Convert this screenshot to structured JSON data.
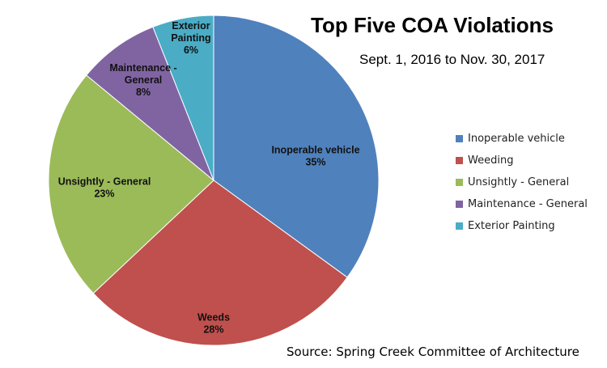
{
  "chart_data": {
    "type": "pie",
    "title": "Top Five COA Violations",
    "subtitle": "Sept. 1, 2016 to Nov. 30, 2017",
    "source": "Source:  Spring Creek Committee of Architecture",
    "legend_position": "right",
    "slices": [
      {
        "legend": "Inoperable vehicle",
        "label_lines": [
          "Inoperable vehicle"
        ],
        "percent_label": "35%",
        "value": 35,
        "color": "#4f81bd"
      },
      {
        "legend": "Weeding",
        "label_lines": [
          "Weeds"
        ],
        "percent_label": "28%",
        "value": 28,
        "color": "#c0504d"
      },
      {
        "legend": "Unsightly - General",
        "label_lines": [
          "Unsightly - General"
        ],
        "percent_label": "23%",
        "value": 23,
        "color": "#9bbb59"
      },
      {
        "legend": "Maintenance - General",
        "label_lines": [
          "Maintenance -",
          "General"
        ],
        "percent_label": "8%",
        "value": 8,
        "color": "#8064a2"
      },
      {
        "legend": "Exterior Painting",
        "label_lines": [
          "Exterior",
          "Painting"
        ],
        "percent_label": "6%",
        "value": 6,
        "color": "#4bacc6"
      }
    ]
  }
}
